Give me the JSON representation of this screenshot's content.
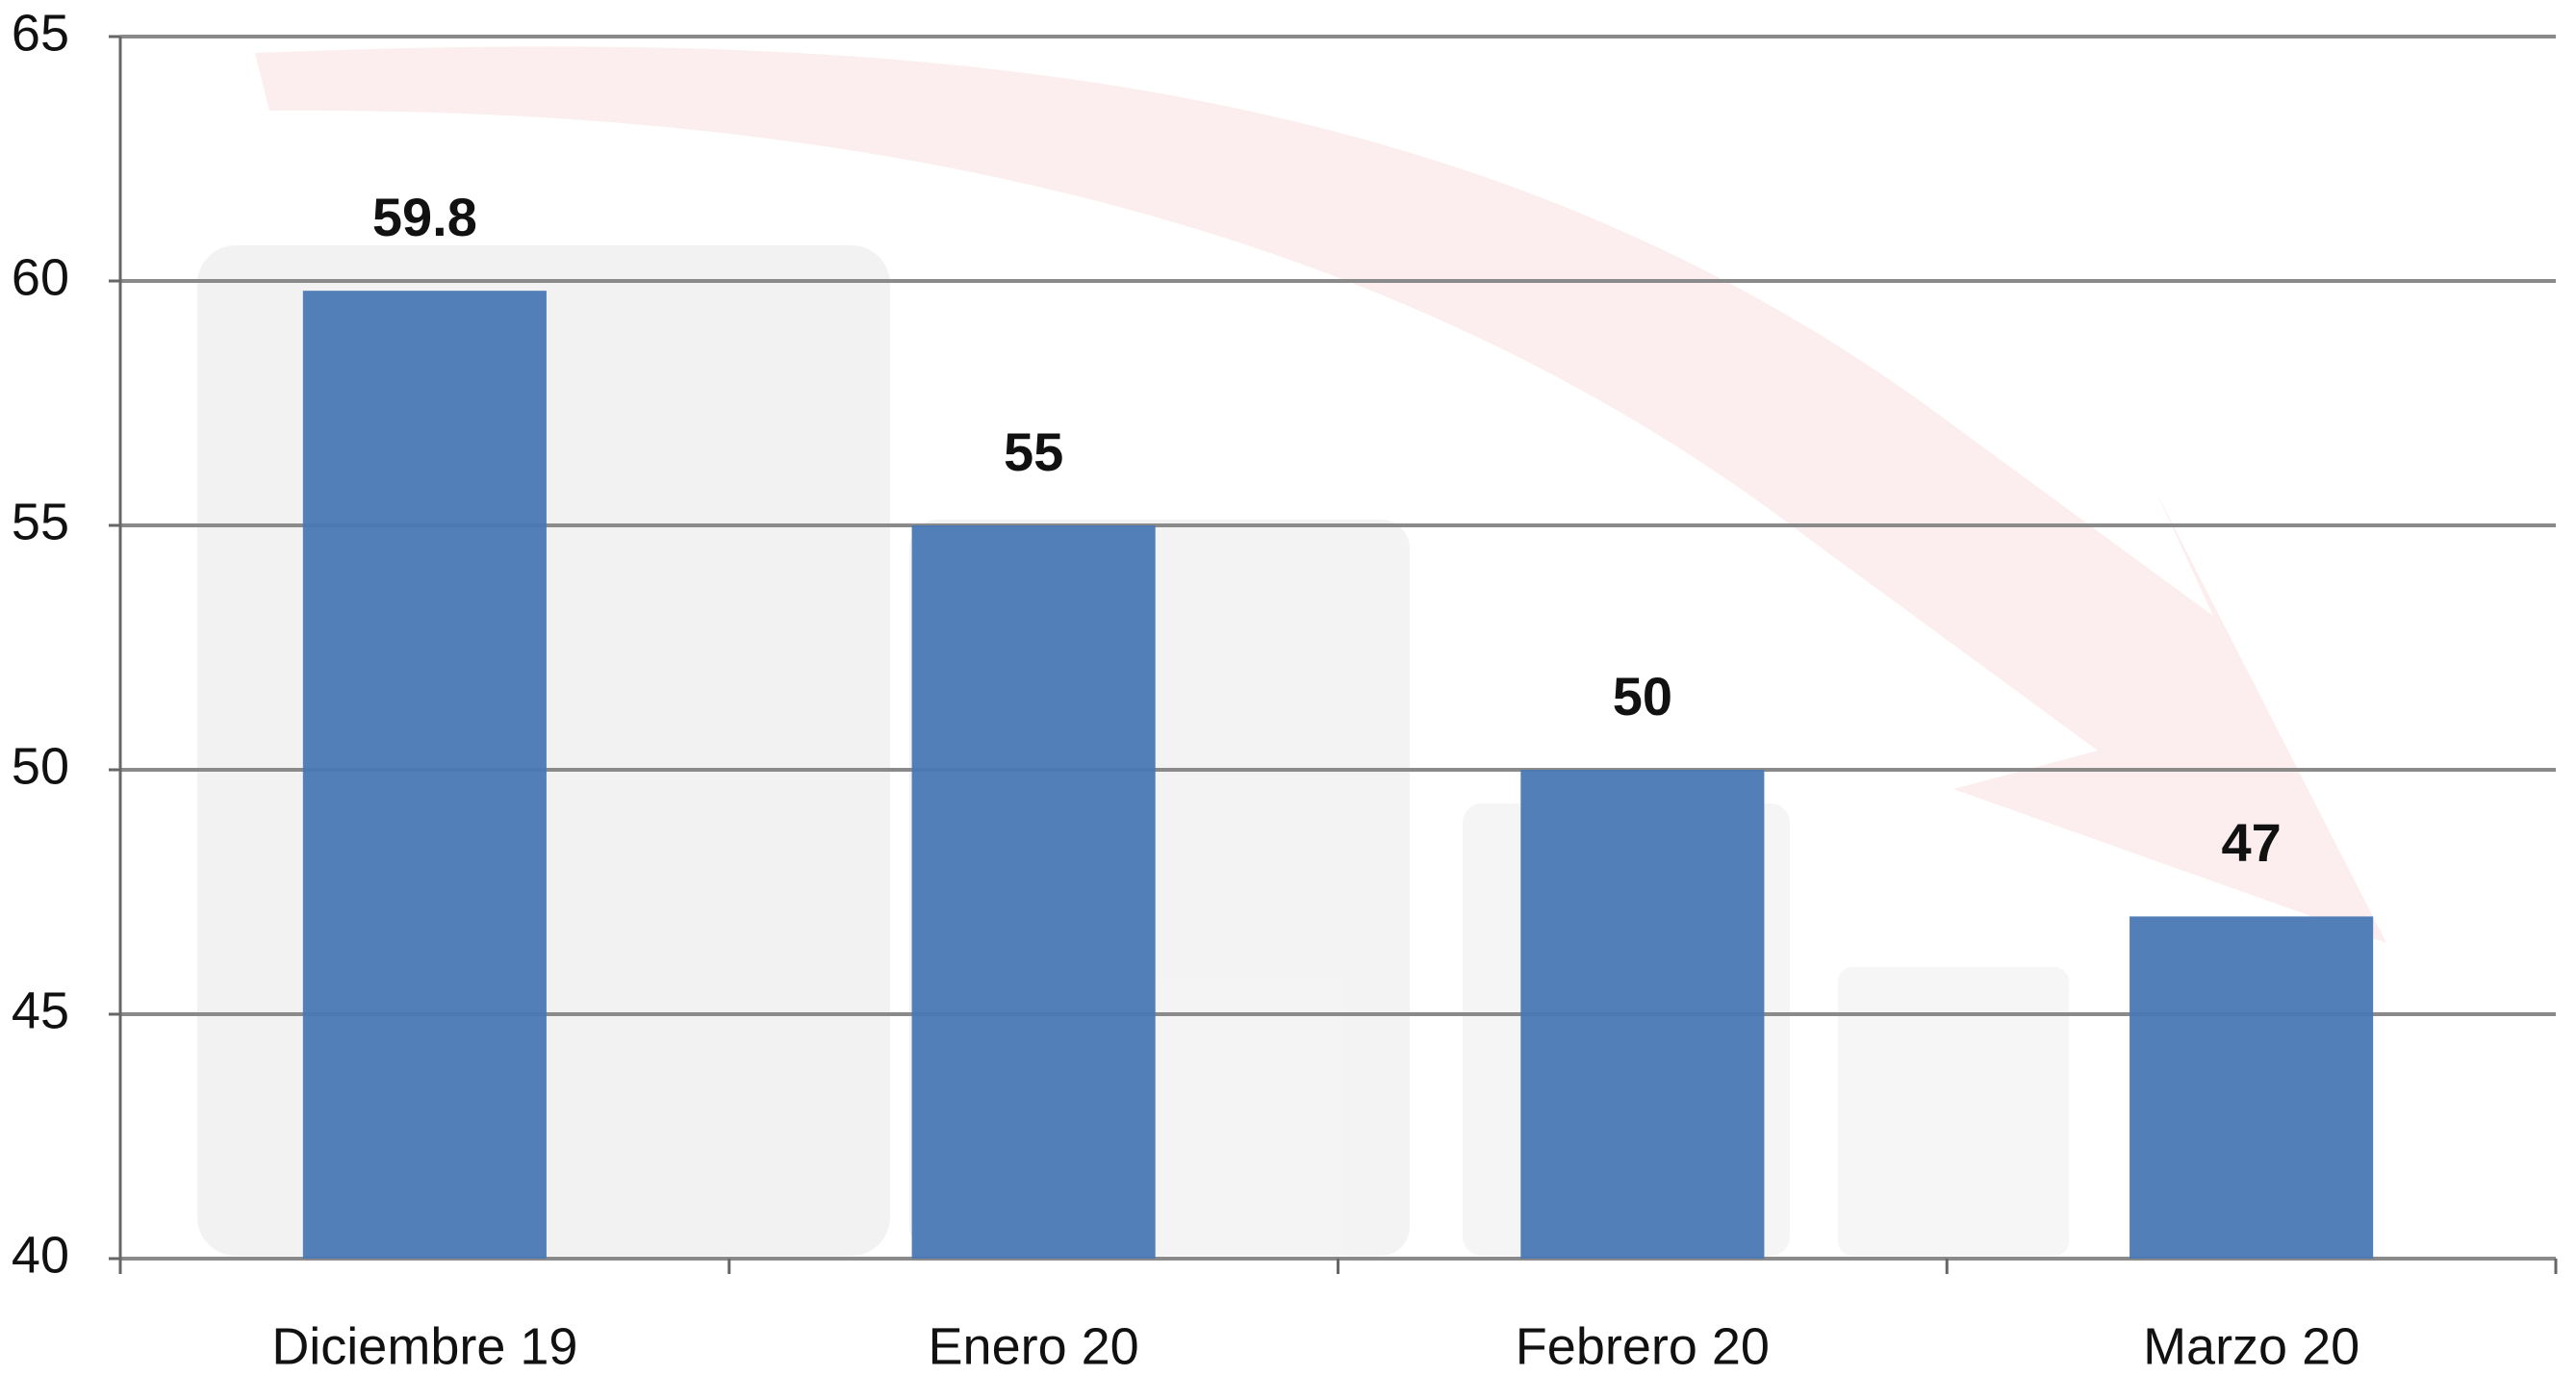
{
  "chart_data": {
    "type": "bar",
    "categories": [
      "Diciembre 19",
      "Enero 20",
      "Febrero 20",
      "Marzo 20"
    ],
    "values": [
      59.8,
      55,
      50,
      47
    ],
    "color": "#4a78b5",
    "ylim": [
      40,
      65
    ],
    "yticks": [
      40,
      45,
      50,
      55,
      60,
      65
    ],
    "grid": true
  }
}
